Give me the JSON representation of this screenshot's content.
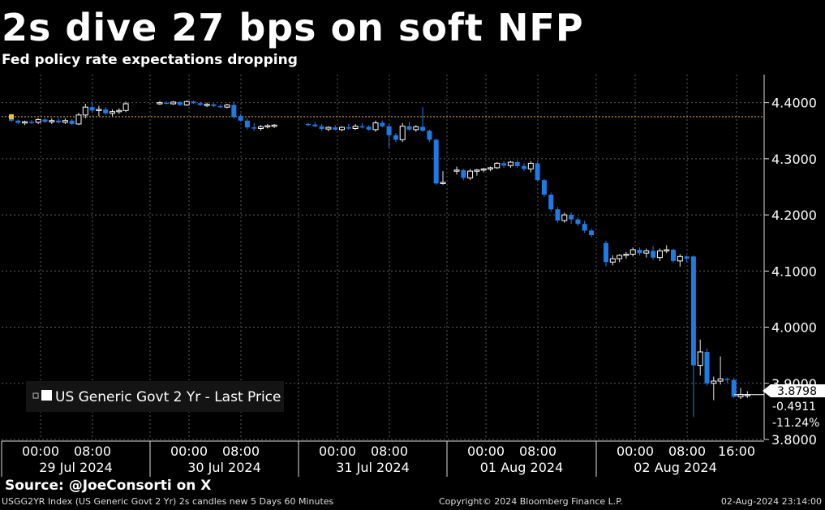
{
  "header": {
    "title": "2s dive 27 bps on soft NFP",
    "subtitle": "Fed policy rate expectations dropping"
  },
  "footer": {
    "source": "Source: @JoeConsorti on X",
    "description": "USGG2YR Index (US Generic Govt 2 Yr) 2s candles new 5 Days 60 Minutes",
    "copyright": "Copyright© 2024 Bloomberg Finance L.P.",
    "timestamp": "02-Aug-2024 23:14:00"
  },
  "colors": {
    "background": "#000000",
    "down_candle": "#1e7be6",
    "up_candle": "#ffffff",
    "grid": "#5a5a5a",
    "reference_line": "#d4a030"
  },
  "chart_data": {
    "type": "candlestick",
    "title": "2s dive 27 bps on soft NFP",
    "subtitle": "Fed policy rate expectations dropping",
    "legend": {
      "label": "US Generic Govt 2 Yr - Last Price",
      "placement": "bottom-left"
    },
    "y_axis": {
      "side": "right",
      "range": [
        3.8,
        4.45
      ],
      "ticks": [
        "4.4000",
        "4.3000",
        "4.2000",
        "4.1000",
        "4.0000",
        "3.9000",
        "3.8000"
      ]
    },
    "grid": true,
    "reference_level": 4.375,
    "last_price": {
      "value": "3.8798",
      "change": "-0.4911",
      "pct_change": "-11.24%"
    },
    "days": [
      {
        "date": "29 Jul 2024",
        "time_labels": [
          "00:00",
          "08:00"
        ],
        "candles": [
          [
            4.372,
            4.38,
            4.365,
            4.368
          ],
          [
            4.368,
            4.37,
            4.362,
            4.364
          ],
          [
            4.364,
            4.368,
            4.36,
            4.366
          ],
          [
            4.366,
            4.369,
            4.362,
            4.365
          ],
          [
            4.365,
            4.372,
            4.362,
            4.37
          ],
          [
            4.37,
            4.372,
            4.364,
            4.366
          ],
          [
            4.366,
            4.372,
            4.362,
            4.368
          ],
          [
            4.368,
            4.373,
            4.363,
            4.365
          ],
          [
            4.365,
            4.372,
            4.362,
            4.368
          ],
          [
            4.368,
            4.371,
            4.36,
            4.362
          ],
          [
            4.362,
            4.382,
            4.36,
            4.378
          ],
          [
            4.378,
            4.398,
            4.372,
            4.392
          ],
          [
            4.392,
            4.402,
            4.382,
            4.386
          ],
          [
            4.386,
            4.394,
            4.376,
            4.388
          ],
          [
            4.388,
            4.392,
            4.378,
            4.381
          ],
          [
            4.381,
            4.388,
            4.376,
            4.384
          ],
          [
            4.384,
            4.39,
            4.38,
            4.386
          ],
          [
            4.386,
            4.402,
            4.383,
            4.398
          ]
        ]
      },
      {
        "date": "30 Jul 2024",
        "time_labels": [
          "00:00",
          "08:00"
        ],
        "candles": [
          [
            4.398,
            4.403,
            4.396,
            4.4
          ],
          [
            4.4,
            4.402,
            4.397,
            4.398
          ],
          [
            4.398,
            4.403,
            4.396,
            4.401
          ],
          [
            4.401,
            4.403,
            4.394,
            4.396
          ],
          [
            4.396,
            4.404,
            4.394,
            4.402
          ],
          [
            4.402,
            4.404,
            4.398,
            4.399
          ],
          [
            4.399,
            4.402,
            4.394,
            4.396
          ],
          [
            4.396,
            4.4,
            4.392,
            4.397
          ],
          [
            4.397,
            4.399,
            4.392,
            4.394
          ],
          [
            4.394,
            4.397,
            4.39,
            4.392
          ],
          [
            4.392,
            4.398,
            4.39,
            4.396
          ],
          [
            4.396,
            4.402,
            4.372,
            4.374
          ],
          [
            4.376,
            4.38,
            4.366,
            4.368
          ],
          [
            4.368,
            4.372,
            4.352,
            4.356
          ],
          [
            4.356,
            4.364,
            4.35,
            4.354
          ],
          [
            4.354,
            4.36,
            4.35,
            4.357
          ],
          [
            4.357,
            4.362,
            4.354,
            4.359
          ],
          [
            4.359,
            4.362,
            4.355,
            4.36
          ]
        ]
      },
      {
        "date": "31 Jul 2024",
        "time_labels": [
          "00:00",
          "08:00"
        ],
        "candles": [
          [
            4.362,
            4.364,
            4.358,
            4.361
          ],
          [
            4.361,
            4.366,
            4.356,
            4.358
          ],
          [
            4.358,
            4.362,
            4.35,
            4.353
          ],
          [
            4.353,
            4.358,
            4.349,
            4.356
          ],
          [
            4.356,
            4.36,
            4.35,
            4.352
          ],
          [
            4.352,
            4.358,
            4.349,
            4.356
          ],
          [
            4.356,
            4.362,
            4.352,
            4.354
          ],
          [
            4.354,
            4.362,
            4.351,
            4.358
          ],
          [
            4.358,
            4.364,
            4.354,
            4.357
          ],
          [
            4.357,
            4.36,
            4.35,
            4.352
          ],
          [
            4.352,
            4.368,
            4.348,
            4.364
          ],
          [
            4.364,
            4.368,
            4.356,
            4.358
          ],
          [
            4.358,
            4.362,
            4.32,
            4.342
          ],
          [
            4.342,
            4.346,
            4.33,
            4.334
          ],
          [
            4.334,
            4.364,
            4.33,
            4.358
          ],
          [
            4.358,
            4.366,
            4.35,
            4.352
          ],
          [
            4.352,
            4.36,
            4.348,
            4.357
          ],
          [
            4.357,
            4.392,
            4.348,
            4.35
          ],
          [
            4.35,
            4.352,
            4.33,
            4.334
          ],
          [
            4.334,
            4.336,
            4.254,
            4.256
          ],
          [
            4.256,
            4.278,
            4.254,
            4.258
          ]
        ]
      },
      {
        "date": "01 Aug 2024",
        "time_labels": [
          "00:00",
          "08:00"
        ],
        "candles": [
          [
            4.278,
            4.286,
            4.272,
            4.28
          ],
          [
            4.28,
            4.282,
            4.262,
            4.266
          ],
          [
            4.266,
            4.282,
            4.262,
            4.278
          ],
          [
            4.278,
            4.282,
            4.27,
            4.28
          ],
          [
            4.28,
            4.284,
            4.276,
            4.282
          ],
          [
            4.282,
            4.286,
            4.278,
            4.284
          ],
          [
            4.284,
            4.294,
            4.282,
            4.292
          ],
          [
            4.292,
            4.296,
            4.284,
            4.288
          ],
          [
            4.288,
            4.296,
            4.284,
            4.294
          ],
          [
            4.294,
            4.298,
            4.284,
            4.287
          ],
          [
            4.287,
            4.292,
            4.278,
            4.282
          ],
          [
            4.282,
            4.296,
            4.276,
            4.292
          ],
          [
            4.292,
            4.296,
            4.26,
            4.262
          ],
          [
            4.262,
            4.264,
            4.232,
            4.236
          ],
          [
            4.236,
            4.24,
            4.206,
            4.21
          ],
          [
            4.21,
            4.214,
            4.186,
            4.19
          ],
          [
            4.19,
            4.204,
            4.186,
            4.2
          ],
          [
            4.2,
            4.204,
            4.184,
            4.192
          ],
          [
            4.192,
            4.196,
            4.18,
            4.184
          ],
          [
            4.184,
            4.19,
            4.168,
            4.172
          ],
          [
            4.172,
            4.176,
            4.16,
            4.164
          ]
        ]
      },
      {
        "date": "02 Aug 2024",
        "time_labels": [
          "00:00",
          "08:00",
          "16:00"
        ],
        "candles": [
          [
            4.15,
            4.154,
            4.108,
            4.116
          ],
          [
            4.116,
            4.128,
            4.11,
            4.122
          ],
          [
            4.122,
            4.13,
            4.116,
            4.128
          ],
          [
            4.128,
            4.134,
            4.122,
            4.13
          ],
          [
            4.13,
            4.142,
            4.126,
            4.138
          ],
          [
            4.138,
            4.142,
            4.128,
            4.132
          ],
          [
            4.132,
            4.14,
            4.124,
            4.136
          ],
          [
            4.136,
            4.144,
            4.12,
            4.124
          ],
          [
            4.124,
            4.14,
            4.118,
            4.136
          ],
          [
            4.136,
            4.146,
            4.132,
            4.138
          ],
          [
            4.138,
            4.14,
            4.114,
            4.118
          ],
          [
            4.118,
            4.13,
            4.108,
            4.126
          ],
          [
            4.126,
            4.128,
            4.116,
            4.122
          ],
          [
            4.126,
            4.128,
            3.84,
            3.932
          ],
          [
            3.932,
            3.978,
            3.914,
            3.956
          ],
          [
            3.956,
            3.962,
            3.896,
            3.9
          ],
          [
            3.9,
            3.912,
            3.87,
            3.904
          ],
          [
            3.904,
            3.948,
            3.898,
            3.908
          ],
          [
            3.908,
            3.91,
            3.9,
            3.906
          ],
          [
            3.906,
            3.91,
            3.874,
            3.876
          ],
          [
            3.876,
            3.892,
            3.872,
            3.88
          ],
          [
            3.878,
            3.886,
            3.874,
            3.88
          ]
        ]
      }
    ]
  }
}
